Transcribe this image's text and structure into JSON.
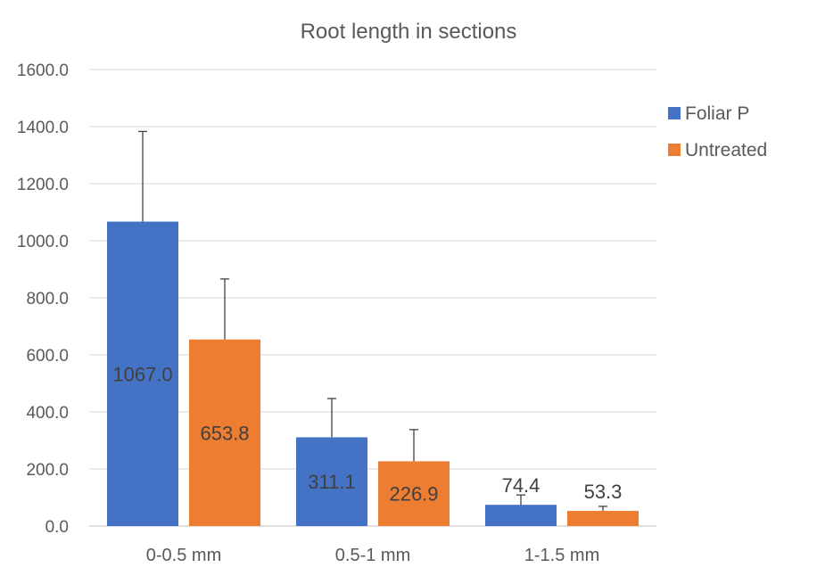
{
  "chart_data": {
    "type": "bar",
    "title": "Root length in sections",
    "xlabel": "",
    "ylabel": "",
    "categories": [
      "0-0.5 mm",
      "0.5-1 mm",
      "1-1.5 mm"
    ],
    "series": [
      {
        "name": "Foliar P",
        "color": "#4472C4",
        "values": [
          1067.0,
          311.1,
          74.4
        ],
        "error_upper": [
          1383,
          447,
          109
        ],
        "labels": [
          "1067.0",
          "311.1",
          "74.4"
        ]
      },
      {
        "name": "Untreated",
        "color": "#ED7D31",
        "values": [
          653.8,
          226.9,
          53.3
        ],
        "error_upper": [
          866,
          338,
          69
        ],
        "labels": [
          "653.8",
          "226.9",
          "53.3"
        ]
      }
    ],
    "ylim": [
      0,
      1600
    ],
    "yticks": [
      0,
      200,
      400,
      600,
      800,
      1000,
      1200,
      1400,
      1600
    ],
    "ytick_labels": [
      "0.0",
      "200.0",
      "400.0",
      "600.0",
      "800.0",
      "1000.0",
      "1200.0",
      "1400.0",
      "1600.0"
    ],
    "grid": true,
    "legend": "right"
  }
}
